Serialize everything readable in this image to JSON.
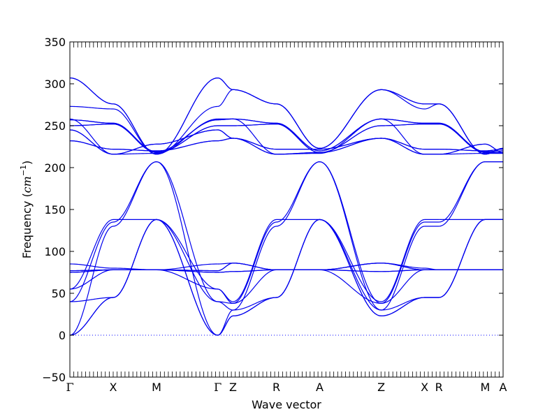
{
  "chart_data": {
    "type": "line",
    "title": "",
    "xlabel": "Wave vector",
    "ylabel_text": "Frequency (",
    "ylabel_unit_base": "cm",
    "ylabel_unit_exp": "−1",
    "ylabel_close": ")",
    "ylim": [
      -50,
      350
    ],
    "yticks": [
      -50,
      0,
      50,
      100,
      150,
      200,
      250,
      300,
      350
    ],
    "xlim": [
      0,
      15
    ],
    "grid": false,
    "legend": "none",
    "line_color": "#0000ee",
    "zero_line_color": "#0000ff",
    "high_symmetry_points": [
      {
        "label": "Γ",
        "x": 0
      },
      {
        "label": "X",
        "x": 1.5
      },
      {
        "label": "M",
        "x": 3.0
      },
      {
        "label": "Γ",
        "x": 5.12
      },
      {
        "label": "Z",
        "x": 5.65
      },
      {
        "label": "R",
        "x": 7.15
      },
      {
        "label": "A",
        "x": 8.65
      },
      {
        "label": "Z",
        "x": 10.78
      },
      {
        "label": "X",
        "x": 12.28
      },
      {
        "label": "R",
        "x": 12.78
      },
      {
        "label": "M",
        "x": 14.38
      },
      {
        "label": "A",
        "x": 15.0
      }
    ],
    "segments": [
      {
        "from": "Γ",
        "to": "X",
        "x": [
          0,
          1.5
        ],
        "branches": [
          [
            0,
            45
          ],
          [
            0,
            45
          ],
          [
            0,
            130
          ],
          [
            40,
            45
          ],
          [
            40,
            135
          ],
          [
            55,
            78
          ],
          [
            55,
            138
          ],
          [
            75,
            78
          ],
          [
            75,
            78
          ],
          [
            77,
            78
          ],
          [
            77,
            78
          ],
          [
            85,
            80
          ],
          [
            232,
            222
          ],
          [
            232,
            222
          ],
          [
            245,
            216
          ],
          [
            245,
            216
          ],
          [
            250,
            252
          ],
          [
            250,
            252
          ],
          [
            257,
            253
          ],
          [
            257,
            253
          ],
          [
            258,
            216
          ],
          [
            273,
            270
          ],
          [
            307,
            276
          ],
          [
            307,
            276
          ]
        ]
      },
      {
        "from": "X",
        "to": "M",
        "x": [
          1.5,
          3.0
        ],
        "branches": [
          [
            45,
            138
          ],
          [
            45,
            138
          ],
          [
            130,
            207
          ],
          [
            45,
            138
          ],
          [
            135,
            207
          ],
          [
            78,
            78
          ],
          [
            138,
            138
          ],
          [
            78,
            78
          ],
          [
            78,
            78
          ],
          [
            78,
            78
          ],
          [
            78,
            78
          ],
          [
            80,
            78
          ],
          [
            222,
            220
          ],
          [
            222,
            220
          ],
          [
            216,
            228
          ],
          [
            216,
            228
          ],
          [
            252,
            218
          ],
          [
            252,
            218
          ],
          [
            253,
            219
          ],
          [
            253,
            219
          ],
          [
            216,
            217
          ],
          [
            270,
            216
          ],
          [
            276,
            216
          ],
          [
            276,
            216
          ]
        ]
      },
      {
        "from": "M",
        "to": "Γ",
        "x": [
          3.0,
          5.12
        ],
        "branches": [
          [
            138,
            0
          ],
          [
            138,
            0
          ],
          [
            207,
            0
          ],
          [
            138,
            40
          ],
          [
            207,
            40
          ],
          [
            78,
            55
          ],
          [
            138,
            55
          ],
          [
            78,
            75
          ],
          [
            78,
            75
          ],
          [
            78,
            77
          ],
          [
            78,
            77
          ],
          [
            78,
            85
          ],
          [
            220,
            232
          ],
          [
            220,
            232
          ],
          [
            228,
            245
          ],
          [
            228,
            245
          ],
          [
            218,
            250
          ],
          [
            218,
            250
          ],
          [
            219,
            257
          ],
          [
            219,
            257
          ],
          [
            217,
            258
          ],
          [
            216,
            273
          ],
          [
            216,
            307
          ],
          [
            216,
            307
          ]
        ]
      },
      {
        "from": "Γ",
        "to": "Z",
        "x": [
          5.12,
          5.65
        ],
        "branches": [
          [
            0,
            23
          ],
          [
            0,
            23
          ],
          [
            0,
            30
          ],
          [
            40,
            30
          ],
          [
            40,
            38
          ],
          [
            55,
            38
          ],
          [
            55,
            40
          ],
          [
            75,
            76
          ],
          [
            75,
            76
          ],
          [
            77,
            86
          ],
          [
            77,
            86
          ],
          [
            85,
            86
          ],
          [
            232,
            235
          ],
          [
            232,
            235
          ],
          [
            245,
            235
          ],
          [
            245,
            235
          ],
          [
            250,
            250
          ],
          [
            250,
            250
          ],
          [
            257,
            258
          ],
          [
            257,
            258
          ],
          [
            258,
            258
          ],
          [
            273,
            293
          ],
          [
            307,
            293
          ],
          [
            307,
            293
          ]
        ]
      },
      {
        "from": "Z",
        "to": "R",
        "x": [
          5.65,
          7.15
        ],
        "branches": [
          [
            23,
            45
          ],
          [
            23,
            45
          ],
          [
            30,
            130
          ],
          [
            30,
            45
          ],
          [
            38,
            135
          ],
          [
            38,
            78
          ],
          [
            40,
            138
          ],
          [
            76,
            78
          ],
          [
            76,
            78
          ],
          [
            86,
            78
          ],
          [
            86,
            78
          ],
          [
            86,
            78
          ],
          [
            235,
            222
          ],
          [
            235,
            222
          ],
          [
            235,
            216
          ],
          [
            235,
            216
          ],
          [
            250,
            252
          ],
          [
            250,
            252
          ],
          [
            258,
            253
          ],
          [
            258,
            253
          ],
          [
            258,
            216
          ],
          [
            293,
            276
          ],
          [
            293,
            276
          ],
          [
            293,
            276
          ]
        ]
      },
      {
        "from": "R",
        "to": "A",
        "x": [
          7.15,
          8.65
        ],
        "branches": [
          [
            45,
            138
          ],
          [
            45,
            138
          ],
          [
            130,
            207
          ],
          [
            45,
            138
          ],
          [
            135,
            207
          ],
          [
            78,
            78
          ],
          [
            138,
            138
          ],
          [
            78,
            78
          ],
          [
            78,
            78
          ],
          [
            78,
            78
          ],
          [
            78,
            78
          ],
          [
            78,
            78
          ],
          [
            222,
            222
          ],
          [
            222,
            222
          ],
          [
            216,
            218
          ],
          [
            216,
            218
          ],
          [
            252,
            218
          ],
          [
            252,
            218
          ],
          [
            253,
            220
          ],
          [
            253,
            220
          ],
          [
            216,
            217
          ],
          [
            276,
            223
          ],
          [
            276,
            223
          ],
          [
            276,
            223
          ]
        ]
      },
      {
        "from": "A",
        "to": "Z",
        "x": [
          8.65,
          10.78
        ],
        "branches": [
          [
            138,
            23
          ],
          [
            138,
            23
          ],
          [
            207,
            30
          ],
          [
            138,
            30
          ],
          [
            207,
            38
          ],
          [
            78,
            38
          ],
          [
            138,
            40
          ],
          [
            78,
            76
          ],
          [
            78,
            76
          ],
          [
            78,
            86
          ],
          [
            78,
            86
          ],
          [
            78,
            86
          ],
          [
            222,
            235
          ],
          [
            222,
            235
          ],
          [
            218,
            235
          ],
          [
            218,
            235
          ],
          [
            218,
            250
          ],
          [
            218,
            250
          ],
          [
            220,
            258
          ],
          [
            220,
            258
          ],
          [
            217,
            258
          ],
          [
            223,
            293
          ],
          [
            223,
            293
          ],
          [
            223,
            293
          ]
        ]
      },
      {
        "from": "Z",
        "to": "X",
        "x": [
          10.78,
          12.28
        ],
        "branches": [
          [
            23,
            45
          ],
          [
            23,
            45
          ],
          [
            30,
            130
          ],
          [
            30,
            45
          ],
          [
            38,
            135
          ],
          [
            38,
            78
          ],
          [
            40,
            138
          ],
          [
            76,
            78
          ],
          [
            76,
            78
          ],
          [
            86,
            78
          ],
          [
            86,
            78
          ],
          [
            86,
            80
          ],
          [
            235,
            222
          ],
          [
            235,
            222
          ],
          [
            235,
            216
          ],
          [
            235,
            216
          ],
          [
            250,
            252
          ],
          [
            250,
            252
          ],
          [
            258,
            253
          ],
          [
            258,
            253
          ],
          [
            258,
            216
          ],
          [
            293,
            270
          ],
          [
            293,
            276
          ],
          [
            293,
            276
          ]
        ]
      },
      {
        "from": "X",
        "to": "R",
        "x": [
          12.28,
          12.78
        ],
        "branches": [
          [
            45,
            45
          ],
          [
            45,
            45
          ],
          [
            130,
            130
          ],
          [
            45,
            45
          ],
          [
            135,
            135
          ],
          [
            78,
            78
          ],
          [
            138,
            138
          ],
          [
            78,
            78
          ],
          [
            78,
            78
          ],
          [
            78,
            78
          ],
          [
            78,
            78
          ],
          [
            80,
            78
          ],
          [
            222,
            222
          ],
          [
            222,
            222
          ],
          [
            216,
            216
          ],
          [
            216,
            216
          ],
          [
            252,
            252
          ],
          [
            252,
            252
          ],
          [
            253,
            253
          ],
          [
            253,
            253
          ],
          [
            216,
            216
          ],
          [
            270,
            276
          ],
          [
            276,
            276
          ],
          [
            276,
            276
          ]
        ]
      },
      {
        "from": "R",
        "to": "M",
        "x": [
          12.78,
          14.38
        ],
        "branches": [
          [
            45,
            138
          ],
          [
            45,
            138
          ],
          [
            130,
            207
          ],
          [
            45,
            138
          ],
          [
            135,
            207
          ],
          [
            78,
            78
          ],
          [
            138,
            138
          ],
          [
            78,
            78
          ],
          [
            78,
            78
          ],
          [
            78,
            78
          ],
          [
            78,
            78
          ],
          [
            78,
            78
          ],
          [
            222,
            220
          ],
          [
            222,
            220
          ],
          [
            216,
            228
          ],
          [
            216,
            228
          ],
          [
            252,
            218
          ],
          [
            252,
            218
          ],
          [
            253,
            219
          ],
          [
            253,
            219
          ],
          [
            216,
            217
          ],
          [
            276,
            216
          ],
          [
            276,
            216
          ],
          [
            276,
            216
          ]
        ]
      },
      {
        "from": "M",
        "to": "A",
        "x": [
          14.38,
          15.0
        ],
        "branches": [
          [
            138,
            138
          ],
          [
            138,
            138
          ],
          [
            207,
            207
          ],
          [
            138,
            138
          ],
          [
            207,
            207
          ],
          [
            78,
            78
          ],
          [
            138,
            138
          ],
          [
            78,
            78
          ],
          [
            78,
            78
          ],
          [
            78,
            78
          ],
          [
            78,
            78
          ],
          [
            78,
            78
          ],
          [
            220,
            222
          ],
          [
            220,
            222
          ],
          [
            228,
            218
          ],
          [
            228,
            218
          ],
          [
            218,
            218
          ],
          [
            218,
            218
          ],
          [
            219,
            220
          ],
          [
            219,
            220
          ],
          [
            217,
            217
          ],
          [
            216,
            223
          ],
          [
            216,
            223
          ],
          [
            216,
            223
          ]
        ]
      }
    ]
  }
}
